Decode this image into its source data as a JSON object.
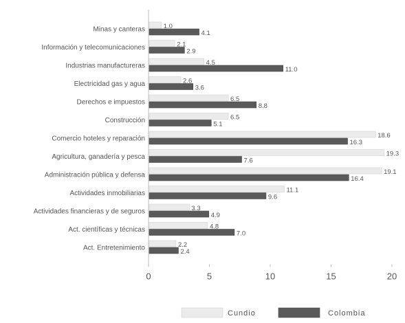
{
  "chart_data": {
    "type": "bar",
    "orientation": "horizontal",
    "title": "",
    "xlabel": "",
    "ylabel": "",
    "xlim": [
      0,
      20
    ],
    "xticks": [
      0,
      5,
      10,
      15,
      20
    ],
    "grid": false,
    "legend_position": "bottom",
    "categories": [
      "Minas y canteras",
      "Información y telecomunicaciones",
      "Industrias manufactureras",
      "Electricidad gas y agua",
      "Derechos e impuestos",
      "Construcción",
      "Comercio hoteles y reparación",
      "Agricultura, ganadería y pesca",
      "Administración pública y defensa",
      "Actividades inmobiliarias",
      "Actividades financieras y de seguros",
      "Act. científicas y técnicas",
      "Act. Entretenimiento"
    ],
    "series": [
      {
        "name": "Cundio",
        "color": "#ebebeb",
        "values": [
          1.0,
          2.1,
          4.5,
          2.6,
          6.5,
          6.5,
          18.6,
          19.3,
          19.1,
          11.1,
          3.3,
          4.8,
          2.2
        ],
        "labels": [
          "1.0",
          "2.1",
          "4.5",
          "2.6",
          "6.5",
          "6.5",
          "18.6",
          "19.3",
          "19.1",
          "11.1",
          "3.3",
          "4.8",
          "2.2"
        ]
      },
      {
        "name": "Colombia",
        "color": "#5a5a5a",
        "values": [
          4.1,
          2.9,
          11.0,
          3.6,
          8.8,
          5.1,
          16.3,
          7.6,
          16.4,
          9.6,
          4.9,
          7.0,
          2.4
        ],
        "labels": [
          "4.1",
          "2.9",
          "11.0",
          "3.6",
          "8.8",
          "5.1",
          "16.3",
          "7.6",
          "16.4",
          "9.6",
          "4.9",
          "7.0",
          "2.4"
        ]
      }
    ]
  }
}
